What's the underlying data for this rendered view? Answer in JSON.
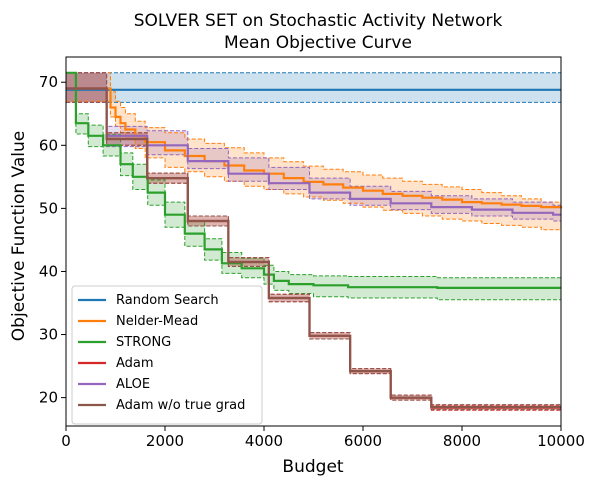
{
  "chart_data": {
    "type": "line",
    "title_line1": "SOLVER SET on Stochastic Activity Network",
    "title_line2": "Mean Objective Curve",
    "xlabel": "Budget",
    "ylabel": "Objective Function Value",
    "xlim": [
      0,
      10000
    ],
    "ylim": [
      15.5,
      74
    ],
    "xticks": [
      0,
      2000,
      4000,
      6000,
      8000,
      10000
    ],
    "yticks": [
      20,
      30,
      40,
      50,
      60,
      70
    ],
    "grid": false,
    "legend_position": "lower-left",
    "series": [
      {
        "name": "Random Search",
        "color": "#1f77b4",
        "x": [
          0,
          10000
        ],
        "y": [
          68.8,
          68.8
        ],
        "lower": [
          66.8,
          66.8
        ],
        "upper": [
          71.5,
          71.5
        ]
      },
      {
        "name": "Nelder-Mead",
        "color": "#ff7f0e",
        "x": [
          0,
          800,
          900,
          1000,
          1100,
          1200,
          1400,
          1600,
          2000,
          2400,
          2800,
          3200,
          3600,
          4000,
          4400,
          4800,
          5200,
          5600,
          6000,
          6400,
          6800,
          7200,
          7600,
          8000,
          8400,
          8800,
          9200,
          9600,
          10000
        ],
        "y": [
          69.0,
          69.0,
          66.0,
          64.5,
          63.5,
          62.5,
          61.5,
          60.5,
          59.2,
          58.3,
          57.5,
          56.8,
          56.0,
          55.5,
          54.8,
          54.2,
          53.8,
          53.3,
          52.8,
          52.3,
          52.0,
          51.7,
          51.4,
          51.0,
          50.8,
          50.6,
          50.4,
          50.2,
          50.0
        ],
        "lower": [
          67.0,
          67.0,
          64.5,
          63.0,
          62.0,
          61.0,
          59.5,
          58.0,
          56.5,
          55.8,
          55.0,
          54.3,
          53.5,
          53.0,
          52.3,
          51.8,
          51.3,
          50.8,
          50.2,
          49.7,
          49.2,
          48.8,
          48.3,
          48.0,
          47.6,
          47.3,
          47.0,
          46.6,
          46.2
        ],
        "upper": [
          71.5,
          71.5,
          68.5,
          67.0,
          66.0,
          65.0,
          63.8,
          62.8,
          62.0,
          61.0,
          60.3,
          59.6,
          58.8,
          58.0,
          57.4,
          56.7,
          56.2,
          55.8,
          55.3,
          54.8,
          54.3,
          53.8,
          53.4,
          53.0,
          52.5,
          52.0,
          51.5,
          51.0,
          50.5
        ]
      },
      {
        "name": "STRONG",
        "color": "#2ca02c",
        "x": [
          0,
          200,
          450,
          750,
          1100,
          1350,
          1650,
          2000,
          2400,
          2800,
          3150,
          3550,
          4000,
          4200,
          4500,
          5000,
          5700,
          6500,
          7500,
          10000
        ],
        "y": [
          71.5,
          63.5,
          61.5,
          60.0,
          57.0,
          55.0,
          52.5,
          49.0,
          46.0,
          43.5,
          41.3,
          40.5,
          39.5,
          38.5,
          38.0,
          37.8,
          37.5,
          37.5,
          37.4,
          37.4
        ],
        "lower": [
          71.5,
          61.8,
          59.8,
          58.3,
          55.2,
          53.0,
          50.5,
          47.0,
          44.0,
          41.8,
          39.7,
          39.0,
          38.0,
          37.0,
          36.5,
          36.0,
          35.8,
          35.8,
          35.5,
          35.5
        ],
        "upper": [
          71.5,
          65.0,
          63.2,
          61.7,
          58.8,
          57.0,
          54.5,
          51.0,
          48.0,
          45.2,
          43.0,
          42.1,
          41.0,
          40.0,
          39.5,
          39.3,
          39.2,
          39.2,
          39.0,
          39.0
        ]
      },
      {
        "name": "Adam",
        "color": "#d62728",
        "x": [
          0,
          820,
          1640,
          2460,
          3280,
          4100,
          4920,
          5740,
          6560,
          7380,
          10000
        ],
        "y": [
          69.0,
          61.0,
          54.8,
          48.0,
          41.5,
          35.8,
          29.8,
          24.2,
          20.0,
          18.4,
          18.4
        ],
        "lower": [
          66.8,
          60.0,
          54.0,
          47.2,
          40.8,
          35.2,
          29.3,
          23.8,
          19.6,
          18.0,
          18.0
        ],
        "upper": [
          71.5,
          62.0,
          55.6,
          48.8,
          42.2,
          36.4,
          30.3,
          24.6,
          20.4,
          18.8,
          18.8
        ]
      },
      {
        "name": "ALOE",
        "color": "#9467bd",
        "x": [
          0,
          820,
          1640,
          2460,
          3280,
          4100,
          4920,
          5740,
          6560,
          7380,
          8200,
          9020,
          9840,
          10000
        ],
        "y": [
          69.0,
          61.5,
          60.0,
          57.5,
          55.5,
          54.0,
          52.5,
          51.5,
          50.8,
          50.2,
          49.8,
          49.3,
          49.0,
          49.0
        ],
        "lower": [
          66.8,
          59.8,
          58.5,
          56.3,
          54.3,
          53.0,
          51.5,
          50.5,
          49.8,
          49.2,
          48.8,
          48.3,
          48.0,
          48.0
        ],
        "upper": [
          71.5,
          63.0,
          62.3,
          59.5,
          58.0,
          56.5,
          54.8,
          53.5,
          52.7,
          52.0,
          51.5,
          51.0,
          50.5,
          50.5
        ]
      },
      {
        "name": "Adam w/o true grad",
        "color": "#8c564b",
        "x": [
          0,
          820,
          1640,
          2460,
          3280,
          4100,
          4920,
          5740,
          6560,
          7380,
          10000
        ],
        "y": [
          69.0,
          61.0,
          54.8,
          48.0,
          41.5,
          35.8,
          29.8,
          24.2,
          20.0,
          18.5,
          18.5
        ],
        "lower": [
          66.8,
          60.0,
          54.0,
          47.2,
          40.8,
          35.2,
          29.3,
          23.8,
          19.6,
          18.1,
          18.1
        ],
        "upper": [
          71.5,
          62.0,
          55.6,
          48.8,
          42.2,
          36.4,
          30.3,
          24.6,
          20.4,
          18.9,
          18.9
        ]
      }
    ]
  }
}
